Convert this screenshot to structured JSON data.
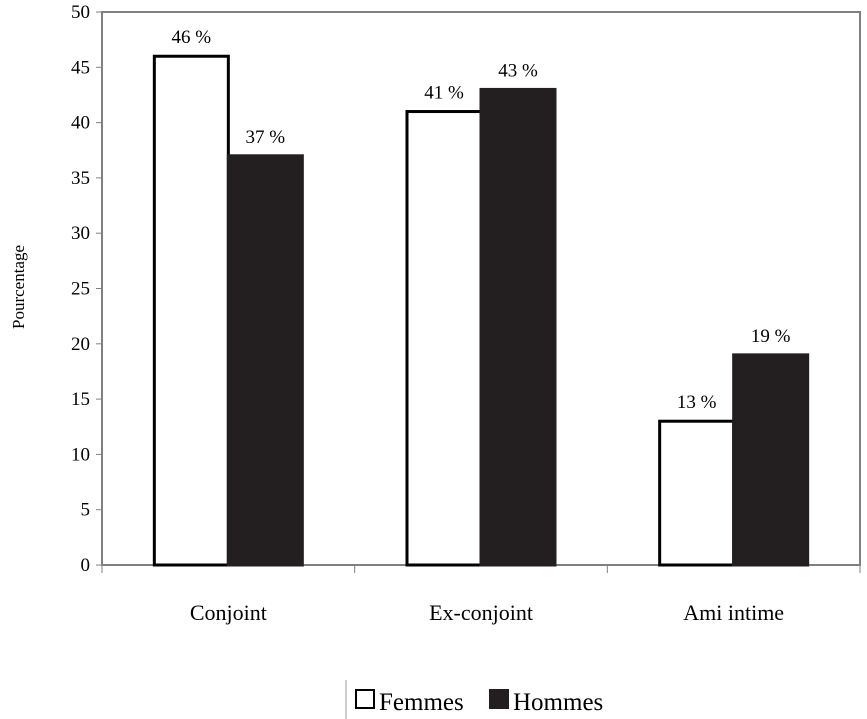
{
  "chart_data": {
    "type": "bar",
    "categories": [
      "Conjoint",
      "Ex-conjoint",
      "Ami intime"
    ],
    "series": [
      {
        "name": "Femmes",
        "values": [
          46,
          41,
          13
        ],
        "labels": [
          "46 %",
          "41 %",
          "13 %"
        ],
        "fill": "#ffffff",
        "stroke": "#000000"
      },
      {
        "name": "Hommes",
        "values": [
          37,
          43,
          19
        ],
        "labels": [
          "37 %",
          "43 %",
          "19 %"
        ],
        "fill": "#231f20",
        "stroke": "#231f20"
      }
    ],
    "title": "",
    "xlabel": "",
    "ylabel": "Pourcentage",
    "ylim": [
      0,
      50
    ],
    "yticks": [
      0,
      5,
      10,
      15,
      20,
      25,
      30,
      35,
      40,
      45,
      50
    ],
    "grid": false,
    "legend": "bottom-center"
  }
}
